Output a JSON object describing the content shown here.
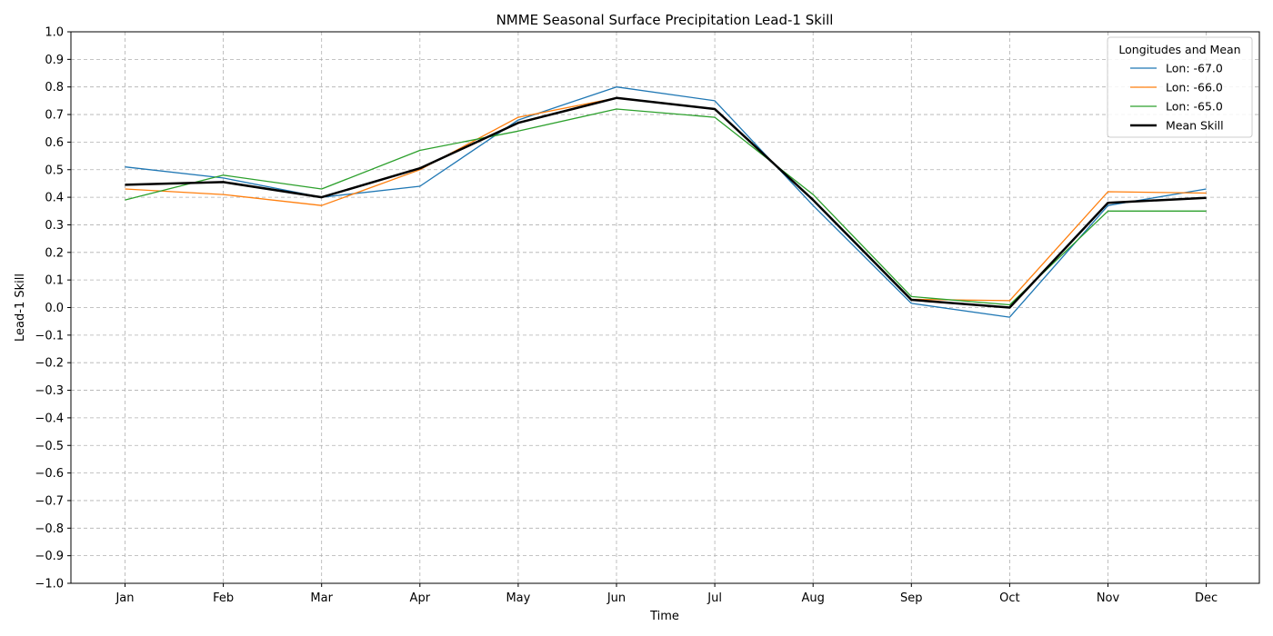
{
  "chart_data": {
    "type": "line",
    "title": "NMME Seasonal Surface Precipitation Lead-1 Skill",
    "xlabel": "Time",
    "ylabel": "Lead-1 Skill",
    "categories": [
      "Jan",
      "Feb",
      "Mar",
      "Apr",
      "May",
      "Jun",
      "Jul",
      "Aug",
      "Sep",
      "Oct",
      "Nov",
      "Dec"
    ],
    "ylim": [
      -1.0,
      1.0
    ],
    "yticks": [
      "−1.0",
      "−0.9",
      "−0.8",
      "−0.7",
      "−0.6",
      "−0.5",
      "−0.4",
      "−0.3",
      "−0.2",
      "−0.1",
      "0.0",
      "0.1",
      "0.2",
      "0.3",
      "0.4",
      "0.5",
      "0.6",
      "0.7",
      "0.8",
      "0.9",
      "1.0"
    ],
    "grid": true,
    "legend": {
      "title": "Longitudes and Mean",
      "placement": "top-right"
    },
    "series": [
      {
        "name": "Lon: -67.0",
        "color": "#1f77b4",
        "width": "thin",
        "values": [
          0.51,
          0.47,
          0.4,
          0.44,
          0.68,
          0.8,
          0.75,
          0.37,
          0.015,
          -0.035,
          0.37,
          0.43
        ]
      },
      {
        "name": "Lon: -66.0",
        "color": "#ff7f0e",
        "width": "thin",
        "values": [
          0.43,
          0.41,
          0.37,
          0.5,
          0.69,
          0.76,
          0.72,
          0.39,
          0.03,
          0.025,
          0.42,
          0.415
        ]
      },
      {
        "name": "Lon: -65.0",
        "color": "#2ca02c",
        "width": "thin",
        "values": [
          0.39,
          0.48,
          0.43,
          0.57,
          0.64,
          0.72,
          0.69,
          0.41,
          0.04,
          0.01,
          0.35,
          0.35
        ]
      },
      {
        "name": "Mean Skill",
        "color": "#000000",
        "width": "thick",
        "values": [
          0.445,
          0.455,
          0.4,
          0.505,
          0.67,
          0.76,
          0.72,
          0.39,
          0.028,
          0.0,
          0.38,
          0.398
        ]
      }
    ]
  }
}
